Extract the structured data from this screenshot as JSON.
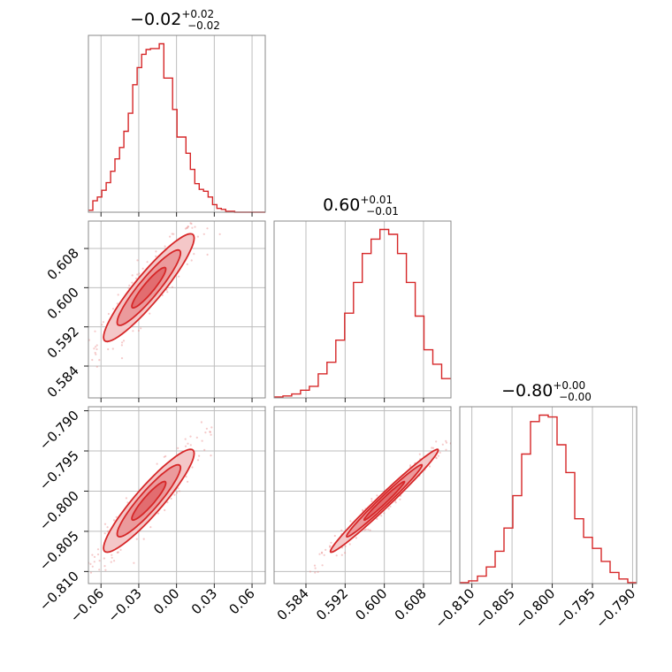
{
  "chart_data": {
    "type": "corner",
    "color": "#d62728",
    "parameters": [
      {
        "title": "−0.02",
        "err_plus": "+0.02",
        "err_minus": "−0.02",
        "range": [
          -0.07,
          0.0705
        ],
        "ticks": [
          -0.06,
          -0.03,
          0.0,
          0.03,
          0.06
        ],
        "tick_labels": [
          "−0.06",
          "−0.03",
          "0.00",
          "0.03",
          "0.06"
        ],
        "histogram": {
          "edges": [
            -0.07,
            -0.0665,
            -0.0629,
            -0.0594,
            -0.0559,
            -0.0524,
            -0.0489,
            -0.0453,
            -0.0418,
            -0.0383,
            -0.0348,
            -0.0313,
            -0.0277,
            -0.0242,
            -0.0207,
            -0.0172,
            -0.0137,
            -0.0101,
            -0.0066,
            -0.0031,
            0.0004,
            0.0039,
            0.0075,
            0.011,
            0.0145,
            0.018,
            0.0215,
            0.0251,
            0.0286,
            0.0321,
            0.0356,
            0.0391,
            0.0427,
            0.0462,
            0.0497,
            0.0532,
            0.0567,
            0.0603,
            0.0638,
            0.0673,
            0.0705
          ],
          "counts": [
            2,
            12,
            16,
            23,
            31,
            43,
            56,
            68,
            85,
            104,
            134,
            152,
            166,
            171,
            172,
            172,
            177,
            141,
            141,
            108,
            79,
            79,
            62,
            45,
            30,
            24,
            22,
            16,
            8,
            4,
            3,
            1,
            1,
            0,
            0,
            0,
            0,
            0,
            0,
            0
          ]
        }
      },
      {
        "title": "0.60",
        "err_plus": "+0.01",
        "err_minus": "−0.01",
        "range": [
          0.5775,
          0.6136
        ],
        "ticks": [
          0.584,
          0.592,
          0.6,
          0.608
        ],
        "tick_labels": [
          "0.584",
          "0.592",
          "0.600",
          "0.608"
        ],
        "histogram": {
          "edges": [
            0.5775,
            0.5793,
            0.5811,
            0.5829,
            0.5847,
            0.5865,
            0.5883,
            0.5901,
            0.5919,
            0.5937,
            0.5955,
            0.5973,
            0.5991,
            0.6009,
            0.6027,
            0.6045,
            0.6063,
            0.6081,
            0.6099,
            0.6117,
            0.6136
          ],
          "counts": [
            1,
            2,
            4,
            8,
            12,
            25,
            37,
            60,
            88,
            120,
            150,
            165,
            175,
            170,
            150,
            120,
            85,
            50,
            35,
            20
          ]
        }
      },
      {
        "title": "−0.80",
        "err_plus": "+0.00",
        "err_minus": "−0.00",
        "range": [
          -0.8115,
          -0.7895
        ],
        "ticks": [
          -0.81,
          -0.805,
          -0.8,
          -0.795,
          -0.79
        ],
        "tick_labels": [
          "−0.810",
          "−0.805",
          "−0.800",
          "−0.795",
          "−0.790"
        ],
        "histogram": {
          "edges": [
            -0.8115,
            -0.8104,
            -0.8093,
            -0.8082,
            -0.8071,
            -0.806,
            -0.8049,
            -0.8038,
            -0.8027,
            -0.8016,
            -0.8005,
            -0.7994,
            -0.7983,
            -0.7972,
            -0.7961,
            -0.795,
            -0.7939,
            -0.7928,
            -0.7917,
            -0.7906,
            -0.7895
          ],
          "counts": [
            1,
            3,
            8,
            18,
            35,
            60,
            95,
            140,
            175,
            182,
            180,
            150,
            120,
            70,
            50,
            38,
            24,
            12,
            5,
            1
          ]
        }
      }
    ],
    "grid": true
  }
}
